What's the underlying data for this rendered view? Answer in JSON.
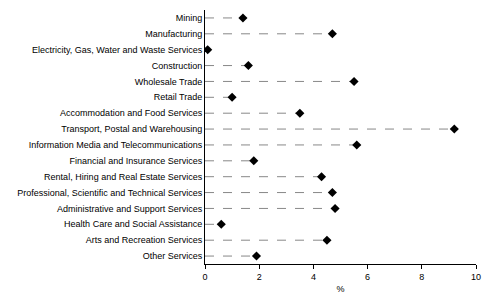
{
  "chart_data": {
    "type": "dot",
    "orientation": "horizontal",
    "categories": [
      "Mining",
      "Manufacturing",
      "Electricity, Gas, Water and Waste Services",
      "Construction",
      "Wholesale Trade",
      "Retail Trade",
      "Accommodation and Food Services",
      "Transport, Postal and Warehousing",
      "Information Media and Telecommunications",
      "Financial and Insurance Services",
      "Rental, Hiring and Real Estate Services",
      "Professional, Scientific and Technical Services",
      "Administrative and Support Services",
      "Health Care and Social Assistance",
      "Arts and Recreation Services",
      "Other Services"
    ],
    "values": [
      1.4,
      4.7,
      0.1,
      1.6,
      5.5,
      1.0,
      3.5,
      9.2,
      5.6,
      1.8,
      4.3,
      4.7,
      4.8,
      0.6,
      4.5,
      1.9
    ],
    "color": "#000000",
    "marker": "diamond",
    "line_style": "dashed",
    "xlabel": "%",
    "xlim": [
      0,
      10
    ],
    "xticks": [
      0,
      2,
      4,
      6,
      8,
      10
    ],
    "grid": false
  }
}
